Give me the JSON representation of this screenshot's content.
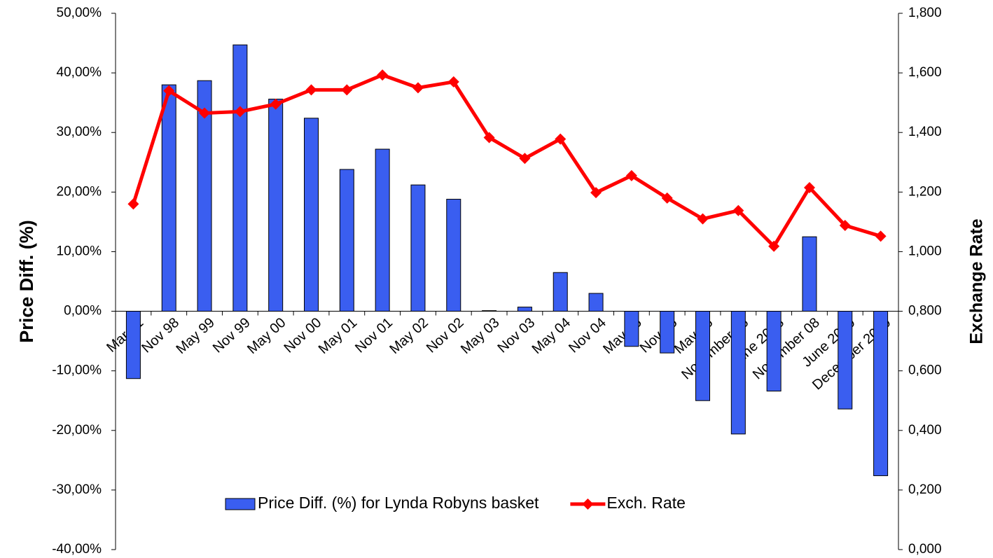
{
  "chart_data": {
    "type": "bar_line",
    "categories": [
      "Mar 91",
      "Nov 98",
      "May 99",
      "Nov 99",
      "May 00",
      "Nov 00",
      "May 01",
      "Nov 01",
      "May 02",
      "Nov 02",
      "May 03",
      "Nov 03",
      "May 04",
      "Nov 04",
      "May 05",
      "Nov 05",
      "May 06",
      "November 06",
      "June 2008",
      "November 08",
      "June 2009",
      "December 2009"
    ],
    "series": [
      {
        "name": "Price Diff. (%) for Lynda Robyns basket",
        "type": "bar",
        "color": "#3a5ef0",
        "values": [
          -11.3,
          38,
          38.7,
          44.7,
          35.6,
          32.4,
          23.8,
          27.2,
          21.2,
          18.8,
          0.1,
          0.7,
          6.5,
          3,
          -5.9,
          -7,
          -15,
          -20.6,
          -13.4,
          12.5,
          -16.4,
          -27.6
        ]
      },
      {
        "name": "Exch. Rate",
        "type": "line",
        "axis": "y2",
        "color": "#ff0000",
        "values": [
          1.16,
          1.54,
          1.465,
          1.47,
          1.495,
          1.543,
          1.543,
          1.593,
          1.55,
          1.57,
          1.383,
          1.313,
          1.378,
          1.198,
          1.255,
          1.18,
          1.11,
          1.138,
          1.018,
          1.215,
          1.088,
          1.052
        ]
      }
    ],
    "ylabel": "Price Diff. (%)",
    "y2label": "Exchange Rate",
    "ylim": [
      -40,
      50
    ],
    "yticks": [
      {
        "value": -40,
        "label": "-40,00%"
      },
      {
        "value": -30,
        "label": "-30,00%"
      },
      {
        "value": -20,
        "label": "-20,00%"
      },
      {
        "value": -10,
        "label": "-10,00%"
      },
      {
        "value": 0,
        "label": "0,00%"
      },
      {
        "value": 10,
        "label": "10,00%"
      },
      {
        "value": 20,
        "label": "20,00%"
      },
      {
        "value": 30,
        "label": "30,00%"
      },
      {
        "value": 40,
        "label": "40,00%"
      },
      {
        "value": 50,
        "label": "50,00%"
      }
    ],
    "y2lim": [
      0,
      1.8
    ],
    "y2ticks": [
      {
        "value": 0,
        "label": "0,000"
      },
      {
        "value": 0.2,
        "label": "0,200"
      },
      {
        "value": 0.4,
        "label": "0,400"
      },
      {
        "value": 0.6,
        "label": "0,600"
      },
      {
        "value": 0.8,
        "label": "0,800"
      },
      {
        "value": 1,
        "label": "1,000"
      },
      {
        "value": 1.2,
        "label": "1,200"
      },
      {
        "value": 1.4,
        "label": "1,400"
      },
      {
        "value": 1.6,
        "label": "1,600"
      },
      {
        "value": 1.8,
        "label": "1,800"
      }
    ]
  }
}
